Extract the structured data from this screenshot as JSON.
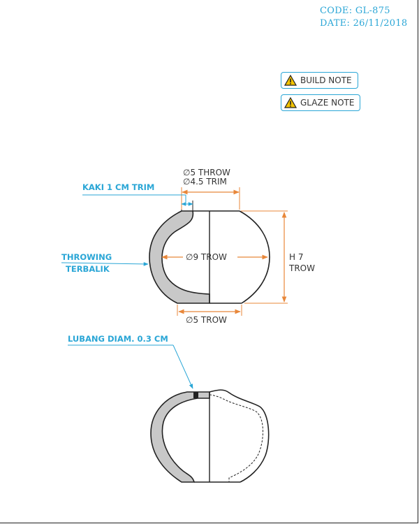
{
  "header": {
    "code": "CODE: GL-875",
    "date": "DATE: 26/11/2018"
  },
  "notes": [
    {
      "label": "BUILD NOTE",
      "icon": "warning-icon"
    },
    {
      "label": "GLAZE NOTE",
      "icon": "warning-icon"
    }
  ],
  "callouts": {
    "kaki": "KAKI 1 CM TRIM",
    "throwing_line1": "THROWING",
    "throwing_line2": "TERBALIK",
    "lubang": "LUBANG DIAM. 0.3 CM"
  },
  "dimensions": {
    "top_throw": "∅5 THROW",
    "top_trim": "∅4.5 TRIM",
    "middle": "∅9 TROW",
    "bottom": "∅5 TROW",
    "height_line1": "H 7",
    "height_line2": "TROW"
  },
  "colors": {
    "accent": "#2aa6d6",
    "dimension": "#e8873a",
    "section_fill": "#c8c8c8",
    "outline": "#222222"
  }
}
